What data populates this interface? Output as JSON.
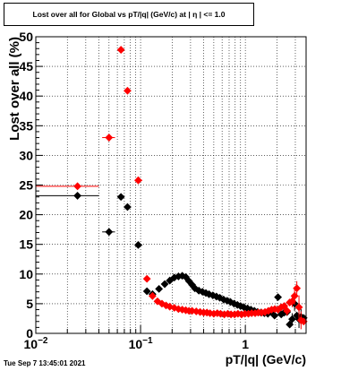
{
  "title": "Lost over all for Global vs pT/|q| (GeV/c) at |  η  | <= 1.0",
  "timestamp": "Tue Sep  7 13:45:01 2021",
  "colors": {
    "series_black": "#000000",
    "series_red": "#ff0000",
    "frame": "#000000",
    "grid": "#000000"
  },
  "chart_data": {
    "type": "scatter",
    "title": "Lost over all for Global vs pT/|q| (GeV/c) at |  η  | <= 1.0",
    "xlabel": "pT/|q| (GeV/c)",
    "ylabel": "Lost over all (%)",
    "xscale": "log",
    "xlim": [
      0.01,
      3.8
    ],
    "ylim": [
      0,
      50
    ],
    "grid": true,
    "x_tick_labels": [
      {
        "value": 0.01,
        "base": "10",
        "exp": "−2"
      },
      {
        "value": 0.1,
        "base": "10",
        "exp": "−1"
      },
      {
        "value": 1,
        "base": "1",
        "exp": ""
      }
    ],
    "y_ticks": [
      0,
      5,
      10,
      15,
      20,
      25,
      30,
      35,
      40,
      45,
      50
    ],
    "series": [
      {
        "color": "black",
        "points": [
          {
            "x": 0.025,
            "y": 23.2,
            "xlo": 0.01,
            "xhi": 0.04
          },
          {
            "x": 0.05,
            "y": 17.1,
            "xlo": 0.043,
            "xhi": 0.057
          },
          {
            "x": 0.065,
            "y": 23.0
          },
          {
            "x": 0.075,
            "y": 21.3
          },
          {
            "x": 0.095,
            "y": 14.9,
            "xlo": 0.088,
            "xhi": 0.104
          },
          {
            "x": 0.115,
            "y": 7.1
          },
          {
            "x": 0.13,
            "y": 6.6
          },
          {
            "x": 0.15,
            "y": 7.5
          },
          {
            "x": 0.17,
            "y": 8.3
          },
          {
            "x": 0.19,
            "y": 8.9
          },
          {
            "x": 0.21,
            "y": 9.4
          },
          {
            "x": 0.23,
            "y": 9.6
          },
          {
            "x": 0.25,
            "y": 9.7
          },
          {
            "x": 0.27,
            "y": 9.5
          },
          {
            "x": 0.29,
            "y": 8.8
          },
          {
            "x": 0.31,
            "y": 8.2
          },
          {
            "x": 0.33,
            "y": 7.6
          },
          {
            "x": 0.36,
            "y": 7.2
          },
          {
            "x": 0.39,
            "y": 7.0
          },
          {
            "x": 0.42,
            "y": 6.8
          },
          {
            "x": 0.45,
            "y": 6.6
          },
          {
            "x": 0.49,
            "y": 6.4
          },
          {
            "x": 0.53,
            "y": 6.2
          },
          {
            "x": 0.57,
            "y": 6.0
          },
          {
            "x": 0.62,
            "y": 5.7
          },
          {
            "x": 0.67,
            "y": 5.5
          },
          {
            "x": 0.72,
            "y": 5.3
          },
          {
            "x": 0.78,
            "y": 5.0
          },
          {
            "x": 0.84,
            "y": 4.8
          },
          {
            "x": 0.9,
            "y": 4.6
          },
          {
            "x": 0.97,
            "y": 4.4
          },
          {
            "x": 1.05,
            "y": 4.2
          },
          {
            "x": 1.13,
            "y": 4.0
          },
          {
            "x": 1.22,
            "y": 3.8
          },
          {
            "x": 1.31,
            "y": 3.6
          },
          {
            "x": 1.41,
            "y": 3.5
          },
          {
            "x": 1.52,
            "y": 3.4
          },
          {
            "x": 1.64,
            "y": 3.3
          },
          {
            "x": 1.77,
            "y": 3.6
          },
          {
            "x": 1.9,
            "y": 3.0
          },
          {
            "x": 2.05,
            "y": 6.1,
            "yerr": 0.5
          },
          {
            "x": 2.2,
            "y": 3.2
          },
          {
            "x": 2.35,
            "y": 3.5
          },
          {
            "x": 2.5,
            "y": 3.6
          },
          {
            "x": 2.65,
            "y": 1.5
          },
          {
            "x": 2.8,
            "y": 2.4,
            "yerr": 1.0
          },
          {
            "x": 2.95,
            "y": 5.0,
            "yerr": 1.2
          },
          {
            "x": 3.1,
            "y": 3.0
          },
          {
            "x": 3.25,
            "y": 2.4,
            "yerr": 1.5
          },
          {
            "x": 3.4,
            "y": 2.8,
            "yerr": 1.3
          },
          {
            "x": 3.6,
            "y": 2.6
          }
        ]
      },
      {
        "color": "red",
        "points": [
          {
            "x": 0.025,
            "y": 24.8,
            "xlo": 0.01,
            "xhi": 0.04
          },
          {
            "x": 0.05,
            "y": 33.0,
            "xlo": 0.043,
            "xhi": 0.057
          },
          {
            "x": 0.065,
            "y": 47.8
          },
          {
            "x": 0.075,
            "y": 40.9
          },
          {
            "x": 0.095,
            "y": 25.8,
            "xlo": 0.088,
            "xhi": 0.104
          },
          {
            "x": 0.115,
            "y": 9.2
          },
          {
            "x": 0.13,
            "y": 6.3
          },
          {
            "x": 0.145,
            "y": 5.4
          },
          {
            "x": 0.16,
            "y": 5.0
          },
          {
            "x": 0.175,
            "y": 4.7
          },
          {
            "x": 0.19,
            "y": 4.5
          },
          {
            "x": 0.21,
            "y": 4.3
          },
          {
            "x": 0.23,
            "y": 4.1
          },
          {
            "x": 0.25,
            "y": 4.0
          },
          {
            "x": 0.27,
            "y": 3.9
          },
          {
            "x": 0.29,
            "y": 3.8
          },
          {
            "x": 0.31,
            "y": 3.8
          },
          {
            "x": 0.34,
            "y": 3.7
          },
          {
            "x": 0.37,
            "y": 3.6
          },
          {
            "x": 0.4,
            "y": 3.5
          },
          {
            "x": 0.43,
            "y": 3.5
          },
          {
            "x": 0.46,
            "y": 3.4
          },
          {
            "x": 0.5,
            "y": 3.3
          },
          {
            "x": 0.54,
            "y": 3.4
          },
          {
            "x": 0.58,
            "y": 3.3
          },
          {
            "x": 0.63,
            "y": 3.2
          },
          {
            "x": 0.68,
            "y": 3.3
          },
          {
            "x": 0.73,
            "y": 3.2
          },
          {
            "x": 0.79,
            "y": 3.2
          },
          {
            "x": 0.85,
            "y": 3.3
          },
          {
            "x": 0.92,
            "y": 3.2
          },
          {
            "x": 0.99,
            "y": 3.3
          },
          {
            "x": 1.07,
            "y": 3.3
          },
          {
            "x": 1.15,
            "y": 3.4
          },
          {
            "x": 1.24,
            "y": 3.4
          },
          {
            "x": 1.33,
            "y": 3.5
          },
          {
            "x": 1.43,
            "y": 3.5
          },
          {
            "x": 1.54,
            "y": 3.6
          },
          {
            "x": 1.66,
            "y": 3.8
          },
          {
            "x": 1.78,
            "y": 4.0
          },
          {
            "x": 1.91,
            "y": 4.1
          },
          {
            "x": 2.05,
            "y": 4.0,
            "yerr": 0.6
          },
          {
            "x": 2.2,
            "y": 4.4
          },
          {
            "x": 2.35,
            "y": 4.6
          },
          {
            "x": 2.5,
            "y": 3.8,
            "yerr": 0.8
          },
          {
            "x": 2.65,
            "y": 5.2
          },
          {
            "x": 2.8,
            "y": 5.4,
            "yerr": 1.0
          },
          {
            "x": 2.95,
            "y": 6.3,
            "yerr": 1.5
          },
          {
            "x": 3.1,
            "y": 7.6,
            "yerr": 1.2
          },
          {
            "x": 3.25,
            "y": 4.4,
            "yerr": 2.0
          },
          {
            "x": 3.4,
            "y": 2.2,
            "yerr": 1.5
          },
          {
            "x": 3.6,
            "y": 2.0
          }
        ]
      }
    ]
  }
}
